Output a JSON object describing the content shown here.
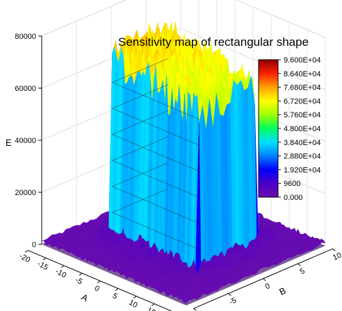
{
  "chart_data": {
    "type": "surface3d",
    "title": "Sensitivity map of rectangular shape",
    "xlabel": "A",
    "ylabel": "B",
    "zlabel": "E",
    "x_ticks": [
      "-20",
      "-15",
      "-10",
      "-5",
      "0",
      "5",
      "10",
      "15",
      "20"
    ],
    "y_ticks": [
      "-10",
      "-5",
      "0",
      "5",
      "10"
    ],
    "z_ticks": [
      "0",
      "20000",
      "40000",
      "60000",
      "80000"
    ],
    "xlim": [
      -20,
      20
    ],
    "ylim": [
      -10,
      10
    ],
    "zlim": [
      0,
      80000
    ],
    "colorbar": {
      "labels": [
        "0.000",
        "9600",
        "1.920E+04",
        "2.880E+04",
        "3.840E+04",
        "4.800E+04",
        "5.760E+04",
        "6.720E+04",
        "7.680E+04",
        "8.640E+04",
        "9.600E+04"
      ],
      "colors": [
        "#6a0dad",
        "#4b00c8",
        "#0000ff",
        "#0080ff",
        "#00e0ff",
        "#00ff60",
        "#a0ff00",
        "#ffff00",
        "#ffa000",
        "#ff2000",
        "#8b0000"
      ]
    },
    "surface": {
      "plateau_x_range": [
        -12,
        12
      ],
      "plateau_y_range": [
        -4,
        4
      ],
      "peak_value": 70000,
      "base_value": 500
    }
  }
}
